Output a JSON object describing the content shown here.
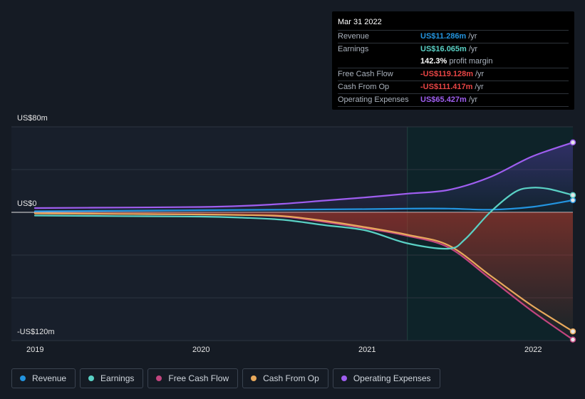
{
  "tooltip": {
    "date": "Mar 31 2022",
    "rows": [
      {
        "label": "Revenue",
        "value": "US$11.286m",
        "unit": "/yr",
        "color": "#2394df"
      },
      {
        "label": "Earnings",
        "value": "US$16.065m",
        "unit": "/yr",
        "color": "#5ad1c5"
      },
      {
        "label": "",
        "value": "142.3%",
        "unit": "profit margin",
        "color": "#ffffff"
      },
      {
        "label": "Free Cash Flow",
        "value": "-US$119.128m",
        "unit": "/yr",
        "color": "#e84545"
      },
      {
        "label": "Cash From Op",
        "value": "-US$111.417m",
        "unit": "/yr",
        "color": "#e84545"
      },
      {
        "label": "Operating Expenses",
        "value": "US$65.427m",
        "unit": "/yr",
        "color": "#9f5ef0"
      }
    ]
  },
  "legend": [
    {
      "label": "Revenue",
      "color": "#2394df"
    },
    {
      "label": "Earnings",
      "color": "#5ad1c5"
    },
    {
      "label": "Free Cash Flow",
      "color": "#c2457f"
    },
    {
      "label": "Cash From Op",
      "color": "#e8a95c"
    },
    {
      "label": "Operating Expenses",
      "color": "#9f5ef0"
    }
  ],
  "chart_data": {
    "type": "line",
    "title": "",
    "xlabel": "",
    "ylabel": "",
    "y_tick_labels": {
      "top": "US$80m",
      "zero": "US$0",
      "bottom": "-US$120m"
    },
    "x_tick_labels": [
      "2019",
      "2020",
      "2021",
      "2022"
    ],
    "xlim": [
      2019.0,
      2022.25
    ],
    "ylim": [
      -120,
      80
    ],
    "highlight_start": 2021.25,
    "series": [
      {
        "name": "Revenue",
        "color": "#2394df",
        "x": [
          2019.0,
          2019.5,
          2020.0,
          2020.5,
          2021.0,
          2021.25,
          2021.5,
          2021.75,
          2022.0,
          2022.25
        ],
        "values": [
          1,
          1.5,
          2,
          2.5,
          3,
          3.5,
          3.5,
          2.5,
          5,
          11.3
        ]
      },
      {
        "name": "Earnings",
        "color": "#5ad1c5",
        "x": [
          2019.0,
          2019.5,
          2020.0,
          2020.25,
          2020.5,
          2020.75,
          2021.0,
          2021.25,
          2021.5,
          2021.6,
          2021.75,
          2021.9,
          2022.0,
          2022.1,
          2022.25
        ],
        "values": [
          -3,
          -3.5,
          -4,
          -5,
          -7,
          -12,
          -17,
          -29,
          -34,
          -25,
          0,
          19,
          23,
          22,
          16.1
        ]
      },
      {
        "name": "Free Cash Flow",
        "color": "#c2457f",
        "x": [
          2019.0,
          2019.5,
          2020.0,
          2020.25,
          2020.5,
          2020.75,
          2021.0,
          2021.25,
          2021.5,
          2021.75,
          2022.0,
          2022.25
        ],
        "values": [
          -1,
          -1.5,
          -2,
          -2.5,
          -4,
          -9,
          -15,
          -22,
          -33,
          -62,
          -92,
          -119.1
        ]
      },
      {
        "name": "Cash From Op",
        "color": "#e8a95c",
        "x": [
          2019.0,
          2019.5,
          2020.0,
          2020.25,
          2020.5,
          2020.75,
          2021.0,
          2021.25,
          2021.5,
          2021.75,
          2022.0,
          2022.25
        ],
        "values": [
          -1,
          -1.5,
          -2,
          -2.5,
          -3.5,
          -8,
          -14,
          -21,
          -31,
          -59,
          -87,
          -111.4
        ]
      },
      {
        "name": "Operating Expenses",
        "color": "#9f5ef0",
        "x": [
          2019.0,
          2019.5,
          2020.0,
          2020.25,
          2020.5,
          2020.75,
          2021.0,
          2021.25,
          2021.5,
          2021.75,
          2022.0,
          2022.25
        ],
        "values": [
          4,
          4.5,
          5,
          6,
          8,
          11,
          14,
          17.5,
          21,
          33,
          52,
          65.4
        ]
      }
    ]
  }
}
